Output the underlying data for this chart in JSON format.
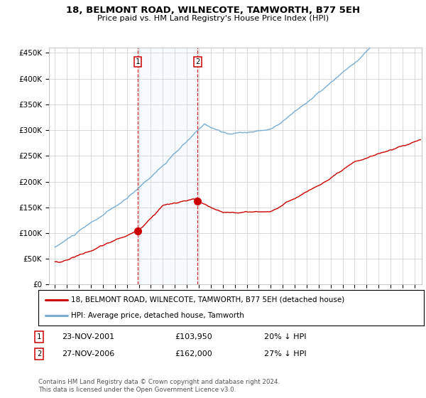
{
  "title": "18, BELMONT ROAD, WILNECOTE, TAMWORTH, B77 5EH",
  "subtitle": "Price paid vs. HM Land Registry's House Price Index (HPI)",
  "sale1_year": 2001.9,
  "sale1_price": 103950,
  "sale2_year": 2006.9,
  "sale2_price": 162000,
  "hpi_color": "#7aadd4",
  "price_color": "#cc0000",
  "shade_color": "#ddeeff",
  "yticks": [
    0,
    50000,
    100000,
    150000,
    200000,
    250000,
    300000,
    350000,
    400000,
    450000
  ],
  "ylim_top": 460000,
  "xlim_left": 1994.5,
  "xlim_right": 2025.6,
  "legend_label1": "18, BELMONT ROAD, WILNECOTE, TAMWORTH, B77 5EH (detached house)",
  "legend_label2": "HPI: Average price, detached house, Tamworth",
  "transaction1_label": "23-NOV-2001",
  "transaction1_price": "£103,950",
  "transaction1_hpi": "20% ↓ HPI",
  "transaction2_label": "27-NOV-2006",
  "transaction2_price": "£162,000",
  "transaction2_hpi": "27% ↓ HPI",
  "footnote": "Contains HM Land Registry data © Crown copyright and database right 2024.\nThis data is licensed under the Open Government Licence v3.0.",
  "background_color": "#ffffff",
  "grid_color": "#cccccc"
}
